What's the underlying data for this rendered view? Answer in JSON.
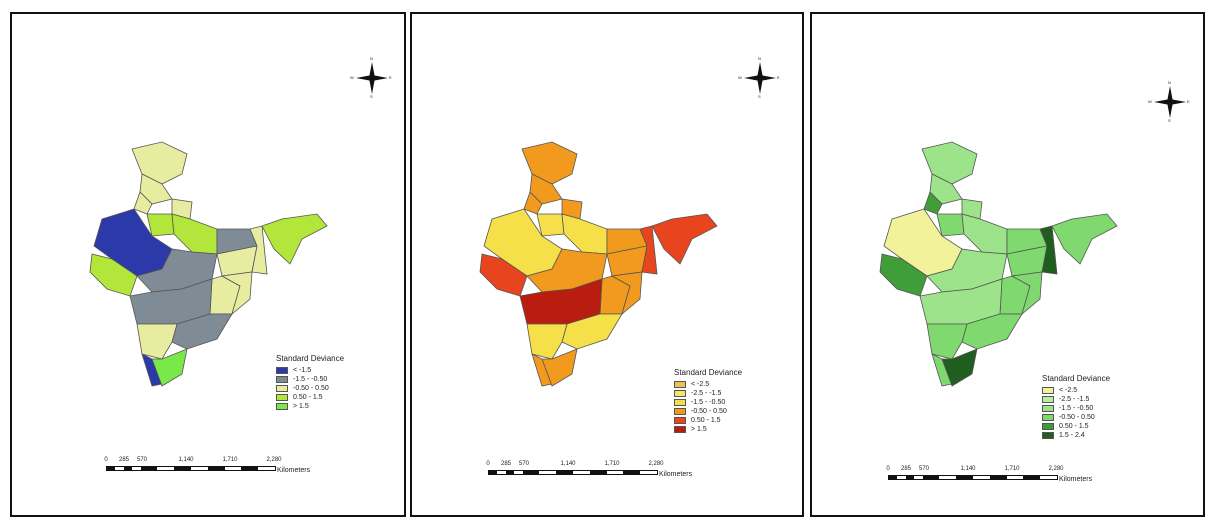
{
  "maps": [
    {
      "legend_title": "Standard Deviance",
      "classes": [
        {
          "label": "< -1.5",
          "color": "#2b3aa8"
        },
        {
          "label": "-1.5 - -0.50",
          "color": "#7f8c95"
        },
        {
          "label": "-0.50 - 0.50",
          "color": "#e8eca0"
        },
        {
          "label": "0.50 - 1.5",
          "color": "#b3e63a"
        },
        {
          "label": "> 1.5",
          "color": "#7be84a"
        }
      ],
      "scale_ticks": [
        "0",
        "285",
        "570",
        "1,140",
        "1,710",
        "2,280"
      ],
      "scale_unit": "Kilometers",
      "compass": {
        "n": "N",
        "s": "S",
        "e": "E",
        "w": "W"
      }
    },
    {
      "legend_title": "Standard Deviance",
      "classes": [
        {
          "label": "< -2.5",
          "color": "#f2c14e"
        },
        {
          "label": "-2.5 - -1.5",
          "color": "#f1e56a"
        },
        {
          "label": "-1.5 - -0.50",
          "color": "#f5e04a"
        },
        {
          "label": "-0.50 - 0.50",
          "color": "#f29a1d"
        },
        {
          "label": "0.50 - 1.5",
          "color": "#e8451f"
        },
        {
          "label": "> 1.5",
          "color": "#b81d10"
        }
      ],
      "scale_ticks": [
        "0",
        "285",
        "570",
        "1,140",
        "1,710",
        "2,280"
      ],
      "scale_unit": "Kilometers",
      "compass": {
        "n": "N",
        "s": "S",
        "e": "E",
        "w": "W"
      }
    },
    {
      "legend_title": "Standard Deviance",
      "classes": [
        {
          "label": "< -2.5",
          "color": "#f2f29a"
        },
        {
          "label": "-2.5 - -1.5",
          "color": "#b9eea0"
        },
        {
          "label": "-1.5 - -0.50",
          "color": "#9ce38a"
        },
        {
          "label": "-0.50 - 0.50",
          "color": "#7fd96e"
        },
        {
          "label": "0.50 - 1.5",
          "color": "#3f9e3a"
        },
        {
          "label": "1.5 - 2.4",
          "color": "#1f5e1f"
        }
      ],
      "scale_ticks": [
        "0",
        "285",
        "570",
        "1,140",
        "1,710",
        "2,280"
      ],
      "scale_unit": "Kilometers",
      "compass": {
        "n": "N",
        "s": "S",
        "e": "E",
        "w": "W"
      }
    }
  ],
  "outline_color": "#555555"
}
